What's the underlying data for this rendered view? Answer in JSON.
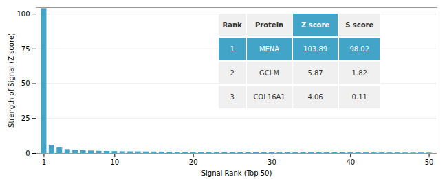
{
  "chart_data": {
    "type": "bar",
    "x": [
      1,
      2,
      3,
      4,
      5,
      6,
      7,
      8,
      9,
      10,
      11,
      12,
      13,
      14,
      15,
      16,
      17,
      18,
      19,
      20,
      21,
      22,
      23,
      24,
      25,
      26,
      27,
      28,
      29,
      30,
      31,
      32,
      33,
      34,
      35,
      36,
      37,
      38,
      39,
      40,
      41,
      42,
      43,
      44,
      45,
      46,
      47,
      48,
      49,
      50
    ],
    "values": [
      103.89,
      5.87,
      4.06,
      2.8,
      2.3,
      2.0,
      1.8,
      1.6,
      1.5,
      1.4,
      1.3,
      1.25,
      1.2,
      1.15,
      1.1,
      1.05,
      1.0,
      0.95,
      0.92,
      0.88,
      0.85,
      0.82,
      0.79,
      0.76,
      0.73,
      0.71,
      0.69,
      0.67,
      0.65,
      0.63,
      0.61,
      0.59,
      0.57,
      0.55,
      0.53,
      0.51,
      0.5,
      0.49,
      0.48,
      0.47,
      0.46,
      0.45,
      0.44,
      0.43,
      0.42,
      0.41,
      0.4,
      0.39,
      0.38,
      0.37
    ],
    "color": "#42A5C8",
    "xlabel": "Signal Rank (Top 50)",
    "ylabel": "Strength of Signal (Z score)",
    "xlim": [
      0,
      51
    ],
    "ylim": [
      0,
      105
    ],
    "xticks": [
      1,
      10,
      20,
      30,
      40,
      50
    ],
    "yticks": [
      0,
      25,
      50,
      75,
      100
    ],
    "grid": true,
    "table": {
      "columns": [
        "Rank",
        "Protein",
        "Z score",
        "S score"
      ],
      "rows": [
        [
          "1",
          "MENA",
          "103.89",
          "98.02"
        ],
        [
          "2",
          "GCLM",
          "5.87",
          "1.82"
        ],
        [
          "3",
          "COL16A1",
          "4.06",
          "0.11"
        ]
      ]
    }
  }
}
